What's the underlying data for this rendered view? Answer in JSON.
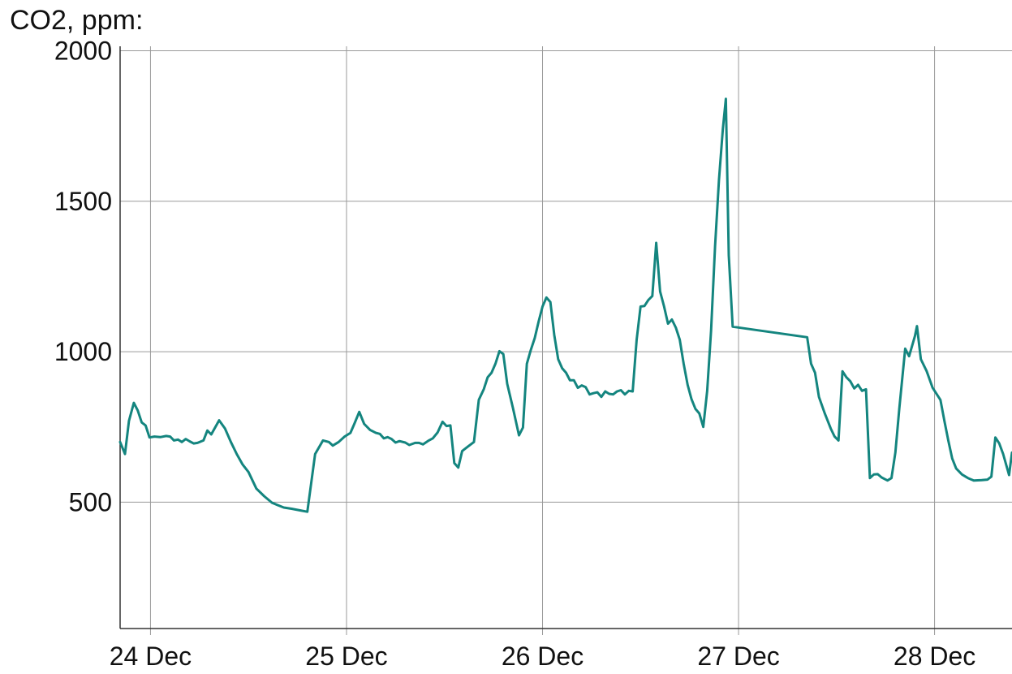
{
  "chart_data": {
    "type": "line",
    "title": "CO2, ppm:",
    "xlabel": "",
    "ylabel": "",
    "ylim": [
      80,
      2015
    ],
    "yticks": [
      500,
      1000,
      1500,
      2000
    ],
    "xlim": [
      -0.155,
      4.395
    ],
    "xticks": [
      {
        "x": 0,
        "label": "24 Dec"
      },
      {
        "x": 1,
        "label": "25 Dec"
      },
      {
        "x": 2,
        "label": "26 Dec"
      },
      {
        "x": 3,
        "label": "27 Dec"
      },
      {
        "x": 4,
        "label": "28 Dec"
      }
    ],
    "grid": true,
    "series": [
      {
        "color": "#14857f",
        "points": [
          [
            -0.155,
            700
          ],
          [
            -0.13,
            660
          ],
          [
            -0.11,
            770
          ],
          [
            -0.085,
            830
          ],
          [
            -0.065,
            805
          ],
          [
            -0.045,
            765
          ],
          [
            -0.025,
            755
          ],
          [
            -0.005,
            715
          ],
          [
            0.02,
            718
          ],
          [
            0.05,
            716
          ],
          [
            0.08,
            720
          ],
          [
            0.1,
            718
          ],
          [
            0.12,
            705
          ],
          [
            0.14,
            708
          ],
          [
            0.16,
            700
          ],
          [
            0.18,
            710
          ],
          [
            0.2,
            702
          ],
          [
            0.22,
            695
          ],
          [
            0.24,
            697
          ],
          [
            0.27,
            705
          ],
          [
            0.29,
            738
          ],
          [
            0.31,
            725
          ],
          [
            0.35,
            772
          ],
          [
            0.38,
            745
          ],
          [
            0.41,
            700
          ],
          [
            0.44,
            660
          ],
          [
            0.47,
            625
          ],
          [
            0.5,
            600
          ],
          [
            0.54,
            545
          ],
          [
            0.58,
            520
          ],
          [
            0.62,
            498
          ],
          [
            0.65,
            490
          ],
          [
            0.68,
            482
          ],
          [
            0.72,
            478
          ],
          [
            0.76,
            473
          ],
          [
            0.8,
            468
          ],
          [
            0.84,
            660
          ],
          [
            0.88,
            705
          ],
          [
            0.91,
            700
          ],
          [
            0.93,
            688
          ],
          [
            0.96,
            700
          ],
          [
            0.99,
            718
          ],
          [
            1.02,
            730
          ],
          [
            1.04,
            760
          ],
          [
            1.065,
            800
          ],
          [
            1.09,
            760
          ],
          [
            1.12,
            740
          ],
          [
            1.15,
            730
          ],
          [
            1.17,
            727
          ],
          [
            1.19,
            712
          ],
          [
            1.21,
            716
          ],
          [
            1.23,
            710
          ],
          [
            1.25,
            698
          ],
          [
            1.27,
            703
          ],
          [
            1.3,
            698
          ],
          [
            1.32,
            690
          ],
          [
            1.35,
            697
          ],
          [
            1.37,
            697
          ],
          [
            1.39,
            692
          ],
          [
            1.42,
            705
          ],
          [
            1.44,
            712
          ],
          [
            1.465,
            732
          ],
          [
            1.49,
            767
          ],
          [
            1.51,
            753
          ],
          [
            1.53,
            755
          ],
          [
            1.55,
            630
          ],
          [
            1.57,
            615
          ],
          [
            1.59,
            670
          ],
          [
            1.62,
            685
          ],
          [
            1.65,
            700
          ],
          [
            1.675,
            840
          ],
          [
            1.7,
            875
          ],
          [
            1.72,
            915
          ],
          [
            1.74,
            930
          ],
          [
            1.76,
            960
          ],
          [
            1.78,
            1002
          ],
          [
            1.8,
            992
          ],
          [
            1.82,
            893
          ],
          [
            1.85,
            810
          ],
          [
            1.88,
            722
          ],
          [
            1.9,
            748
          ],
          [
            1.92,
            960
          ],
          [
            1.94,
            1005
          ],
          [
            1.96,
            1045
          ],
          [
            1.98,
            1100
          ],
          [
            2.0,
            1150
          ],
          [
            2.02,
            1180
          ],
          [
            2.04,
            1165
          ],
          [
            2.06,
            1055
          ],
          [
            2.08,
            975
          ],
          [
            2.1,
            945
          ],
          [
            2.12,
            930
          ],
          [
            2.14,
            905
          ],
          [
            2.16,
            905
          ],
          [
            2.18,
            880
          ],
          [
            2.2,
            888
          ],
          [
            2.22,
            882
          ],
          [
            2.24,
            858
          ],
          [
            2.26,
            862
          ],
          [
            2.28,
            865
          ],
          [
            2.3,
            850
          ],
          [
            2.32,
            868
          ],
          [
            2.34,
            860
          ],
          [
            2.36,
            858
          ],
          [
            2.38,
            868
          ],
          [
            2.4,
            872
          ],
          [
            2.42,
            858
          ],
          [
            2.44,
            870
          ],
          [
            2.46,
            868
          ],
          [
            2.48,
            1040
          ],
          [
            2.5,
            1150
          ],
          [
            2.52,
            1152
          ],
          [
            2.54,
            1172
          ],
          [
            2.56,
            1185
          ],
          [
            2.58,
            1362
          ],
          [
            2.6,
            1200
          ],
          [
            2.62,
            1150
          ],
          [
            2.64,
            1093
          ],
          [
            2.66,
            1107
          ],
          [
            2.68,
            1080
          ],
          [
            2.7,
            1040
          ],
          [
            2.72,
            960
          ],
          [
            2.74,
            890
          ],
          [
            2.76,
            842
          ],
          [
            2.78,
            810
          ],
          [
            2.8,
            795
          ],
          [
            2.82,
            750
          ],
          [
            2.84,
            870
          ],
          [
            2.86,
            1070
          ],
          [
            2.88,
            1350
          ],
          [
            2.9,
            1570
          ],
          [
            2.92,
            1740
          ],
          [
            2.935,
            1840
          ],
          [
            2.95,
            1320
          ],
          [
            2.97,
            1083
          ],
          [
            3.35,
            1048
          ],
          [
            3.37,
            960
          ],
          [
            3.39,
            930
          ],
          [
            3.41,
            850
          ],
          [
            3.44,
            795
          ],
          [
            3.47,
            745
          ],
          [
            3.49,
            718
          ],
          [
            3.51,
            705
          ],
          [
            3.53,
            935
          ],
          [
            3.55,
            915
          ],
          [
            3.57,
            902
          ],
          [
            3.59,
            878
          ],
          [
            3.61,
            890
          ],
          [
            3.63,
            870
          ],
          [
            3.65,
            875
          ],
          [
            3.67,
            580
          ],
          [
            3.69,
            592
          ],
          [
            3.71,
            593
          ],
          [
            3.73,
            582
          ],
          [
            3.76,
            572
          ],
          [
            3.78,
            580
          ],
          [
            3.8,
            665
          ],
          [
            3.82,
            810
          ],
          [
            3.85,
            1010
          ],
          [
            3.87,
            985
          ],
          [
            3.9,
            1052
          ],
          [
            3.91,
            1085
          ],
          [
            3.93,
            975
          ],
          [
            3.96,
            935
          ],
          [
            3.99,
            880
          ],
          [
            4.03,
            840
          ],
          [
            4.05,
            770
          ],
          [
            4.07,
            705
          ],
          [
            4.09,
            645
          ],
          [
            4.11,
            612
          ],
          [
            4.14,
            592
          ],
          [
            4.17,
            580
          ],
          [
            4.2,
            572
          ],
          [
            4.24,
            573
          ],
          [
            4.27,
            575
          ],
          [
            4.29,
            585
          ],
          [
            4.31,
            715
          ],
          [
            4.33,
            695
          ],
          [
            4.35,
            660
          ],
          [
            4.38,
            590
          ],
          [
            4.395,
            665
          ]
        ]
      }
    ]
  }
}
